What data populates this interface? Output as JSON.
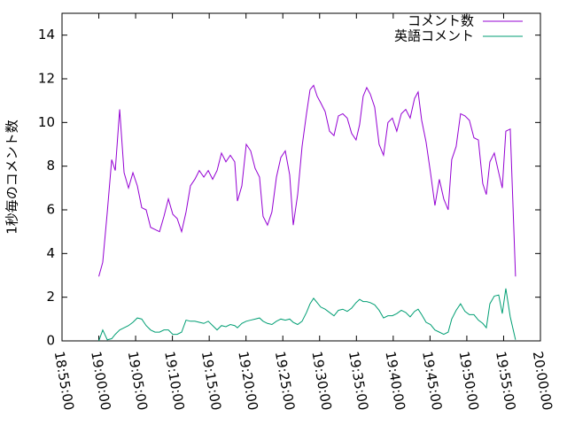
{
  "chart_data": {
    "type": "line",
    "y_label": "1秒毎のコメント数",
    "x": [
      68400,
      68432,
      68469,
      68505,
      68534,
      68570,
      68606,
      68642,
      68678,
      68714,
      68750,
      68786,
      68822,
      68858,
      68895,
      68931,
      68967,
      69003,
      69039,
      69075,
      69111,
      69147,
      69183,
      69219,
      69256,
      69292,
      69328,
      69364,
      69400,
      69436,
      69472,
      69508,
      69530,
      69566,
      69602,
      69638,
      69674,
      69710,
      69739,
      69775,
      69811,
      69848,
      69884,
      69920,
      69956,
      69985,
      70021,
      70057,
      70093,
      70122,
      70151,
      70180,
      70209,
      70245,
      70281,
      70317,
      70353,
      70389,
      70425,
      70461,
      70497,
      70526,
      70555,
      70584,
      70613,
      70649,
      70685,
      70721,
      70757,
      70793,
      70829,
      70866,
      70902,
      70938,
      70974,
      71003,
      71032,
      71068,
      71104,
      71140,
      71176,
      71212,
      71248,
      71277,
      71313,
      71349,
      71385,
      71421,
      71458,
      71494,
      71530,
      71559,
      71588,
      71624,
      71660,
      71689,
      71718,
      71754,
      71797
    ],
    "series": [
      {
        "name": "コメント数",
        "color": "#9400d3",
        "values": [
          2.95,
          3.6,
          5.9,
          8.3,
          7.8,
          10.6,
          7.7,
          7.0,
          7.7,
          7.1,
          6.1,
          6.0,
          5.2,
          5.1,
          5.0,
          5.7,
          6.5,
          5.8,
          5.6,
          5.0,
          5.9,
          7.1,
          7.4,
          7.8,
          7.5,
          7.8,
          7.4,
          7.8,
          8.6,
          8.2,
          8.5,
          8.2,
          6.4,
          7.1,
          9.0,
          8.7,
          7.9,
          7.5,
          5.7,
          5.3,
          5.9,
          7.5,
          8.4,
          8.7,
          7.6,
          5.3,
          6.7,
          8.9,
          10.4,
          11.5,
          11.7,
          11.2,
          10.9,
          10.5,
          9.6,
          9.4,
          10.3,
          10.4,
          10.2,
          9.5,
          9.2,
          9.9,
          11.2,
          11.6,
          11.3,
          10.7,
          9.0,
          8.5,
          10.0,
          10.2,
          9.6,
          10.4,
          10.6,
          10.2,
          11.1,
          11.4,
          10.1,
          9.1,
          7.7,
          6.2,
          7.4,
          6.5,
          6.0,
          8.3,
          8.9,
          10.4,
          10.3,
          10.1,
          9.3,
          9.2,
          7.2,
          6.7,
          8.2,
          8.6,
          7.7,
          7.0,
          9.6,
          9.7,
          2.95
        ]
      },
      {
        "name": "英語コメント",
        "color": "#009e73",
        "values": [
          0,
          0.5,
          0.05,
          0.1,
          0.3,
          0.5,
          0.6,
          0.7,
          0.85,
          1.05,
          1.0,
          0.7,
          0.5,
          0.4,
          0.4,
          0.5,
          0.5,
          0.3,
          0.3,
          0.4,
          0.95,
          0.9,
          0.9,
          0.85,
          0.8,
          0.9,
          0.7,
          0.5,
          0.7,
          0.65,
          0.75,
          0.7,
          0.6,
          0.8,
          0.9,
          0.95,
          1.0,
          1.05,
          0.9,
          0.8,
          0.75,
          0.9,
          1.0,
          0.95,
          1.0,
          0.85,
          0.75,
          0.9,
          1.3,
          1.7,
          1.95,
          1.75,
          1.55,
          1.45,
          1.3,
          1.15,
          1.4,
          1.45,
          1.35,
          1.5,
          1.75,
          1.9,
          1.8,
          1.8,
          1.75,
          1.65,
          1.4,
          1.05,
          1.15,
          1.15,
          1.25,
          1.4,
          1.3,
          1.1,
          1.35,
          1.45,
          1.2,
          0.85,
          0.75,
          0.5,
          0.4,
          0.3,
          0.4,
          1.0,
          1.4,
          1.7,
          1.35,
          1.2,
          1.2,
          0.95,
          0.8,
          0.6,
          1.7,
          2.05,
          2.1,
          1.25,
          2.4,
          1.1,
          0.05
        ]
      }
    ],
    "xlim": [
      68100,
      72000
    ],
    "xticks": [
      {
        "value": 68100,
        "label": "18:55:00"
      },
      {
        "value": 68400,
        "label": "19:00:00"
      },
      {
        "value": 68700,
        "label": "19:05:00"
      },
      {
        "value": 69000,
        "label": "19:10:00"
      },
      {
        "value": 69300,
        "label": "19:15:00"
      },
      {
        "value": 69600,
        "label": "19:20:00"
      },
      {
        "value": 69900,
        "label": "19:25:00"
      },
      {
        "value": 70200,
        "label": "19:30:00"
      },
      {
        "value": 70500,
        "label": "19:35:00"
      },
      {
        "value": 70800,
        "label": "19:40:00"
      },
      {
        "value": 71100,
        "label": "19:45:00"
      },
      {
        "value": 71400,
        "label": "19:50:00"
      },
      {
        "value": 71700,
        "label": "19:55:00"
      },
      {
        "value": 72000,
        "label": "20:00:00"
      }
    ],
    "ylim": [
      0,
      15
    ],
    "yticks": [
      0,
      2,
      4,
      6,
      8,
      10,
      12,
      14
    ],
    "legend": "upper right"
  }
}
